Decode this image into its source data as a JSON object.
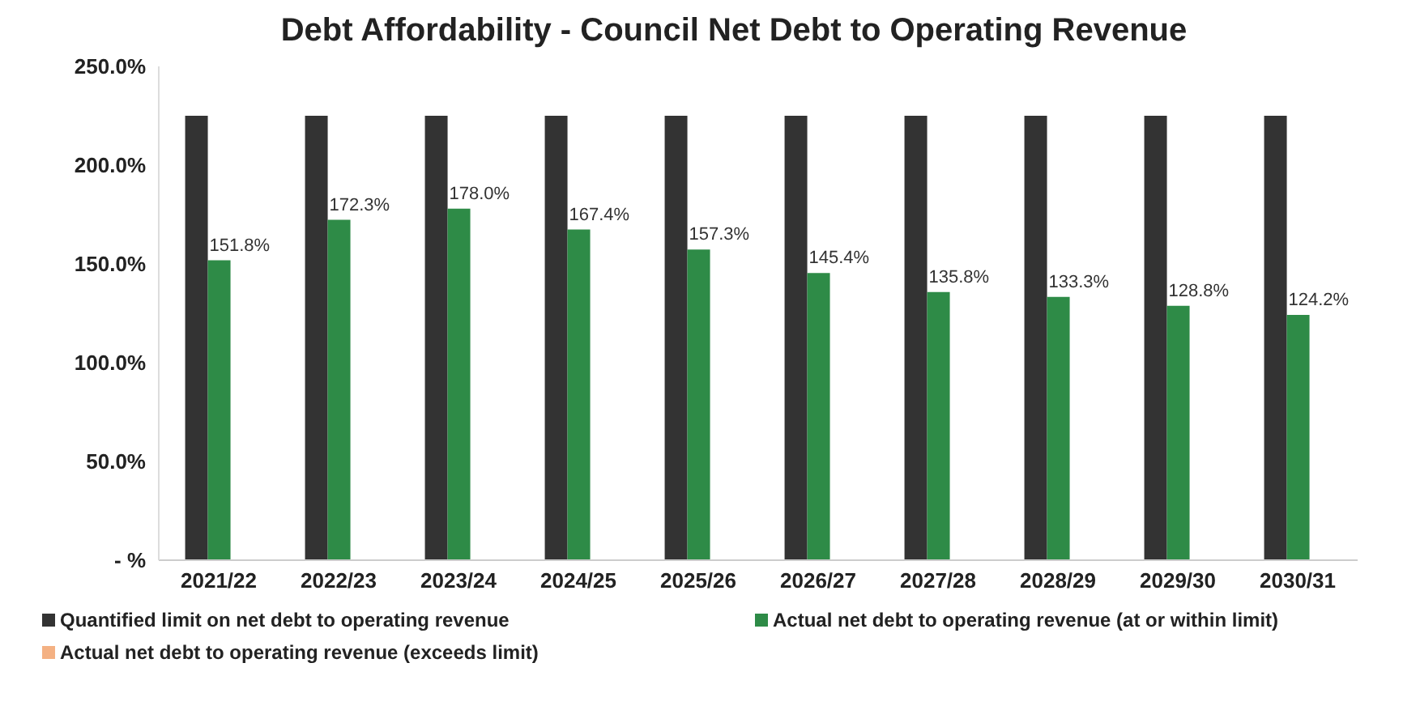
{
  "chart_data": {
    "type": "bar",
    "title": "Debt Affordability - Council Net Debt to Operating Revenue",
    "categories": [
      "2021/22",
      "2022/23",
      "2023/24",
      "2024/25",
      "2025/26",
      "2026/27",
      "2027/28",
      "2028/29",
      "2029/30",
      "2030/31"
    ],
    "series": [
      {
        "name": "Quantified limit on net debt to operating revenue",
        "color": "#333333",
        "values": [
          225,
          225,
          225,
          225,
          225,
          225,
          225,
          225,
          225,
          225
        ]
      },
      {
        "name": "Actual net debt to operating revenue (at or within limit)",
        "color": "#2e8b47",
        "values": [
          151.8,
          172.3,
          178.0,
          167.4,
          157.3,
          145.4,
          135.8,
          133.3,
          128.8,
          124.2
        ],
        "value_labels": [
          "151.8%",
          "172.3%",
          "178.0%",
          "167.4%",
          "157.3%",
          "145.4%",
          "135.8%",
          "133.3%",
          "128.8%",
          "124.2%"
        ]
      },
      {
        "name": "Actual net debt to operating revenue (exceeds limit)",
        "color": "#f4b183",
        "values": [
          null,
          null,
          null,
          null,
          null,
          null,
          null,
          null,
          null,
          null
        ]
      }
    ],
    "ylim": [
      0,
      250
    ],
    "yticks": [
      {
        "value": 0,
        "label": "- %"
      },
      {
        "value": 50,
        "label": "50.0%"
      },
      {
        "value": 100,
        "label": "100.0%"
      },
      {
        "value": 150,
        "label": "150.0%"
      },
      {
        "value": 200,
        "label": "200.0%"
      },
      {
        "value": 250,
        "label": "250.0%"
      }
    ],
    "grid": false,
    "legend": "bottom"
  }
}
